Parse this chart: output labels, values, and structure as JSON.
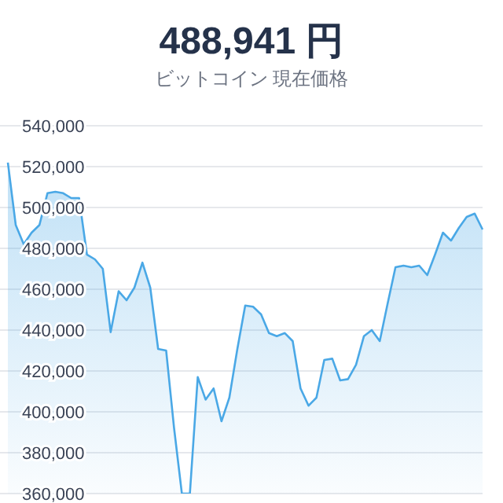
{
  "chart_data": {
    "type": "area",
    "title": "488,941 円",
    "subtitle": "ビットコイン 現在価格",
    "categories": [
      null,
      null,
      null,
      null,
      null,
      null,
      null,
      null,
      null,
      null,
      null,
      null,
      null,
      null,
      null,
      null,
      null,
      null,
      null,
      null,
      null,
      null,
      null,
      null,
      null,
      null,
      null,
      null,
      null,
      null,
      null,
      null,
      null,
      null,
      null,
      null,
      null,
      null,
      null,
      null,
      null,
      null,
      null,
      null,
      null,
      null,
      null,
      null,
      null,
      null,
      null,
      null,
      null,
      null,
      null,
      null,
      null,
      null,
      null,
      null,
      null
    ],
    "series": [
      {
        "color": "#4aa8e6",
        "values": [
          522000,
          491500,
          482000,
          487700,
          491500,
          507000,
          507700,
          507000,
          504600,
          504600,
          477000,
          474600,
          470000,
          439000,
          459000,
          454600,
          460800,
          473000,
          460800,
          430800,
          430000,
          392300,
          360000,
          360000,
          417000,
          406000,
          411500,
          395400,
          406900,
          430800,
          452000,
          451500,
          447700,
          438500,
          437000,
          438500,
          434600,
          411500,
          403000,
          406900,
          425400,
          426000,
          415400,
          416000,
          423000,
          437000,
          440000,
          434600,
          453000,
          470800,
          471500,
          470800,
          471500,
          466900,
          477000,
          487700,
          483800,
          490000,
          495400,
          497000,
          489200
        ]
      }
    ],
    "ylim": [
      360000,
      540000
    ],
    "yticks": [
      {
        "value": 360000,
        "label": "360,000"
      },
      {
        "value": 380000,
        "label": "380,000"
      },
      {
        "value": 400000,
        "label": "400,000"
      },
      {
        "value": 420000,
        "label": "420,000"
      },
      {
        "value": 440000,
        "label": "440,000"
      },
      {
        "value": 460000,
        "label": "460,000"
      },
      {
        "value": 480000,
        "label": "480,000"
      },
      {
        "value": 500000,
        "label": "500,000"
      },
      {
        "value": 520000,
        "label": "520,000"
      },
      {
        "value": 540000,
        "label": "540,000"
      }
    ],
    "grid": "y",
    "tick_labels": "y"
  }
}
